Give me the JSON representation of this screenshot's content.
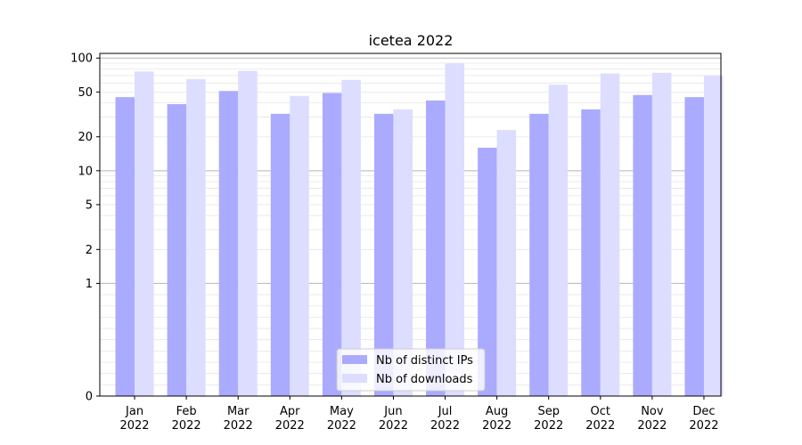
{
  "chart_data": {
    "type": "bar",
    "title": "icetea 2022",
    "xlabel": "",
    "ylabel": "",
    "categories": [
      [
        "Jan",
        "2022"
      ],
      [
        "Feb",
        "2022"
      ],
      [
        "Mar",
        "2022"
      ],
      [
        "Apr",
        "2022"
      ],
      [
        "May",
        "2022"
      ],
      [
        "Jun",
        "2022"
      ],
      [
        "Jul",
        "2022"
      ],
      [
        "Aug",
        "2022"
      ],
      [
        "Sep",
        "2022"
      ],
      [
        "Oct",
        "2022"
      ],
      [
        "Nov",
        "2022"
      ],
      [
        "Dec",
        "2022"
      ]
    ],
    "series": [
      {
        "name": "Nb of distinct IPs",
        "color": "#aaaaff",
        "values": [
          45,
          39,
          51,
          32,
          49,
          32,
          42,
          16,
          32,
          35,
          47,
          45
        ]
      },
      {
        "name": "Nb of downloads",
        "color": "#ddddff",
        "values": [
          76,
          65,
          77,
          46,
          64,
          35,
          90,
          23,
          58,
          73,
          74,
          70
        ]
      }
    ],
    "y_scale": "symlog",
    "ylim": [
      0,
      110
    ],
    "yticks": [
      {
        "value": 0,
        "label": "0"
      },
      {
        "value": 1,
        "label": "1"
      },
      {
        "value": 2,
        "label": "2"
      },
      {
        "value": 5,
        "label": "5"
      },
      {
        "value": 10,
        "label": "10"
      },
      {
        "value": 20,
        "label": "20"
      },
      {
        "value": 50,
        "label": "50"
      },
      {
        "value": 100,
        "label": "100"
      }
    ],
    "grid": true,
    "legend_position": "lower-center"
  }
}
